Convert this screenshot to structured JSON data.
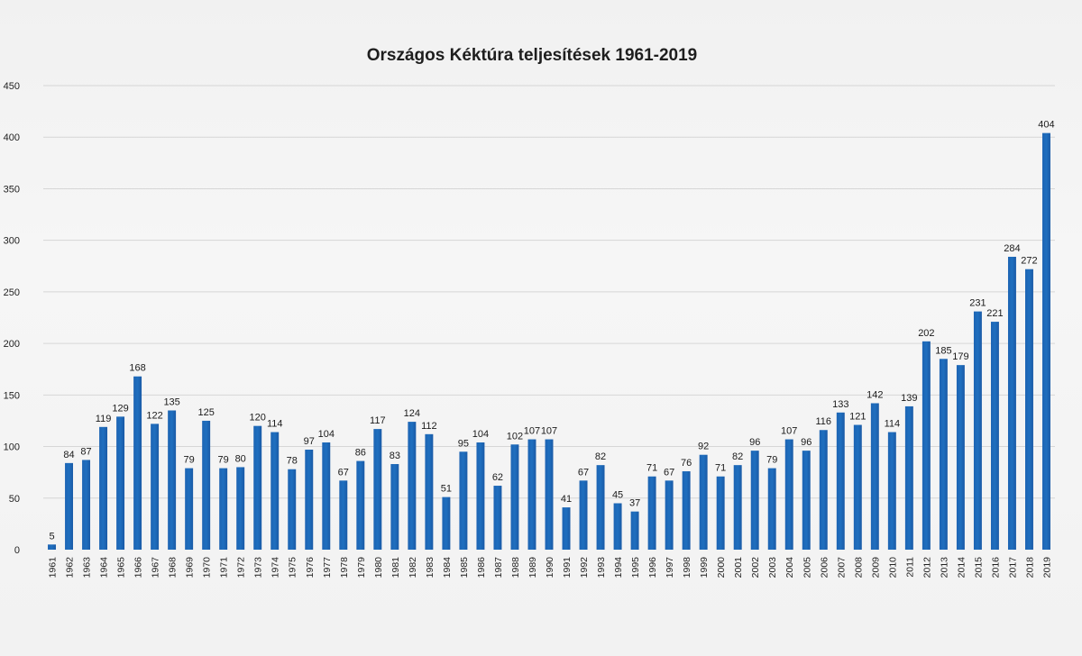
{
  "chart_data": {
    "type": "bar",
    "title": "Országos Kéktúra teljesítések 1961-2019",
    "xlabel": "",
    "ylabel": "",
    "ylim": [
      0,
      450
    ],
    "yticks": [
      "0",
      "50",
      "100",
      "150",
      "200",
      "250",
      "300",
      "350",
      "400",
      "450"
    ],
    "grid": true,
    "legend": "none",
    "bar_color": "#1f6fbf",
    "categories": [
      "1961",
      "1962",
      "1963",
      "1964",
      "1965",
      "1966",
      "1967",
      "1968",
      "1969",
      "1970",
      "1971",
      "1972",
      "1973",
      "1974",
      "1975",
      "1976",
      "1977",
      "1978",
      "1979",
      "1980",
      "1981",
      "1982",
      "1983",
      "1984",
      "1985",
      "1986",
      "1987",
      "1988",
      "1989",
      "1990",
      "1991",
      "1992",
      "1993",
      "1994",
      "1995",
      "1996",
      "1997",
      "1998",
      "1999",
      "2000",
      "2001",
      "2002",
      "2003",
      "2004",
      "2005",
      "2006",
      "2007",
      "2008",
      "2009",
      "2010",
      "2011",
      "2012",
      "2013",
      "2014",
      "2015",
      "2016",
      "2017",
      "2018",
      "2019"
    ],
    "values": [
      5,
      84,
      87,
      119,
      129,
      168,
      122,
      135,
      79,
      125,
      79,
      80,
      120,
      114,
      78,
      97,
      104,
      67,
      86,
      117,
      83,
      124,
      112,
      51,
      95,
      104,
      62,
      102,
      107,
      107,
      41,
      67,
      82,
      45,
      37,
      71,
      67,
      76,
      92,
      71,
      82,
      96,
      79,
      107,
      96,
      116,
      133,
      121,
      142,
      114,
      139,
      202,
      185,
      179,
      231,
      221,
      284,
      272,
      404
    ],
    "data_labels": [
      "5",
      "84",
      "87",
      "119",
      "129",
      "168",
      "122",
      "135",
      "79",
      "125",
      "79",
      "80",
      "120",
      "114",
      "78",
      "97",
      "104",
      "67",
      "86",
      "117",
      "83",
      "124",
      "112",
      "51",
      "95",
      "104",
      "62",
      "102",
      "107",
      "107",
      "41",
      "67",
      "82",
      "45",
      "37",
      "71",
      "67",
      "76",
      "92",
      "71",
      "82",
      "96",
      "79",
      "107",
      "96",
      "116",
      "133",
      "121",
      "142",
      "114",
      "139",
      "202",
      "185",
      "179",
      "231",
      "221",
      "284",
      "272",
      "404"
    ]
  }
}
